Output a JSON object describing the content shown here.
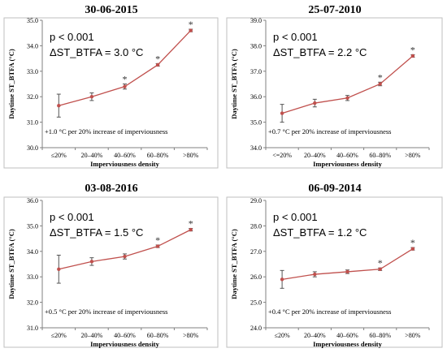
{
  "figure": {
    "x_label": "Imperviousness density",
    "y_label": "Daytime ST_BTFA (°C)",
    "line_color": "#c0504d",
    "marker_color": "#c0504d",
    "error_color": "#555555"
  },
  "chart_data": [
    {
      "type": "line",
      "title": "30-06-2015",
      "categories": [
        "≤20%",
        "20–40%",
        "40–60%",
        "60–80%",
        ">80%"
      ],
      "values": [
        31.65,
        32.0,
        32.4,
        33.25,
        34.6
      ],
      "error": [
        0.45,
        0.15,
        0.1,
        0.05,
        0.05
      ],
      "significant": [
        false,
        false,
        true,
        true,
        true
      ],
      "ylim": [
        30.0,
        35.0
      ],
      "yticks": [
        "30.0",
        "31.0",
        "32.0",
        "33.0",
        "34.0",
        "35.0"
      ],
      "p_text": "p < 0.001",
      "delta_text": "ΔST_BTFA = 3.0 °C",
      "note": "+1.0 °C per 20% increase of imperviousness"
    },
    {
      "type": "line",
      "title": "25-07-2010",
      "categories": [
        "<=20%",
        "20–40%",
        "40–60%",
        "60–80%",
        ">80%"
      ],
      "values": [
        35.35,
        35.75,
        35.95,
        36.5,
        37.6
      ],
      "error": [
        0.35,
        0.15,
        0.1,
        0.07,
        0.05
      ],
      "significant": [
        false,
        false,
        false,
        true,
        true
      ],
      "ylim": [
        34.0,
        39.0
      ],
      "yticks": [
        "34.0",
        "35.0",
        "36.0",
        "37.0",
        "38.0",
        "39.0"
      ],
      "p_text": "p < 0.001",
      "delta_text": "ΔST_BTFA = 2.2 °C",
      "note": "+0.7 °C per 20% increase of imperviousness"
    },
    {
      "type": "line",
      "title": "03-08-2016",
      "categories": [
        "≤20%",
        "20–40%",
        "40–60%",
        "60–80%",
        ">80%"
      ],
      "values": [
        33.3,
        33.6,
        33.8,
        34.2,
        34.85
      ],
      "error": [
        0.55,
        0.15,
        0.1,
        0.05,
        0.05
      ],
      "significant": [
        false,
        false,
        false,
        true,
        true
      ],
      "ylim": [
        31.0,
        36.0
      ],
      "yticks": [
        "31.0",
        "32.0",
        "33.0",
        "34.0",
        "35.0",
        "36.0"
      ],
      "p_text": "p < 0.001",
      "delta_text": "ΔST_BTFA = 1.5 °C",
      "note": "+0.5 °C per 20% increase of imperviousness"
    },
    {
      "type": "line",
      "title": "06-09-2014",
      "categories": [
        "≤20%",
        "20–40%",
        "40–60%",
        "60–80%",
        ">80%"
      ],
      "values": [
        25.9,
        26.1,
        26.2,
        26.3,
        27.1
      ],
      "error": [
        0.35,
        0.1,
        0.07,
        0.05,
        0.05
      ],
      "significant": [
        false,
        false,
        false,
        true,
        true
      ],
      "ylim": [
        24.0,
        29.0
      ],
      "yticks": [
        "24.0",
        "25.0",
        "26.0",
        "27.0",
        "28.0",
        "29.0"
      ],
      "p_text": "p < 0.001",
      "delta_text": "ΔST_BTFA = 1.2 °C",
      "note": "+0.4 °C per 20% increase of imperviousness"
    }
  ]
}
